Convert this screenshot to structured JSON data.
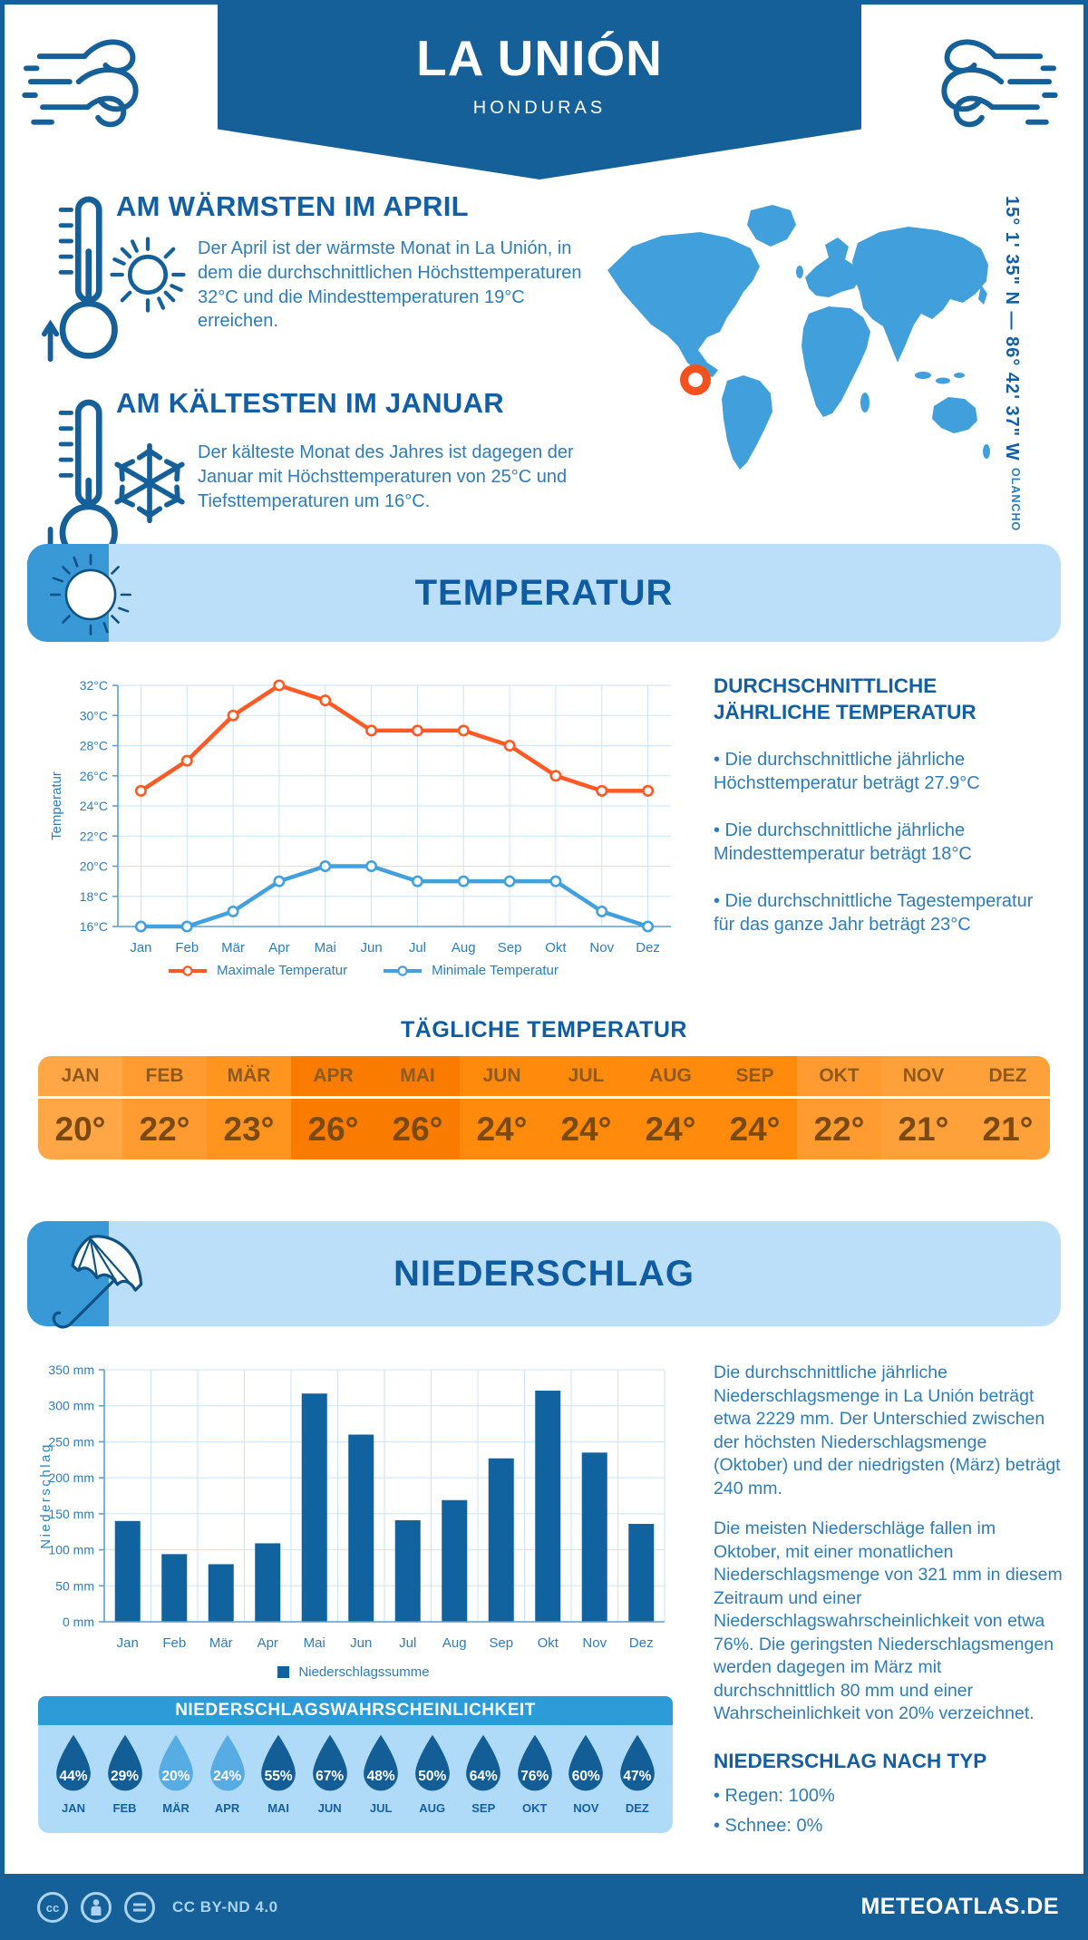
{
  "header": {
    "title": "LA UNIÓN",
    "subtitle": "HONDURAS"
  },
  "warmest": {
    "title": "AM WÄRMSTEN IM APRIL",
    "text": "Der April ist der wärmste Monat in La Unión, in dem die durchschnittlichen Höchsttemperaturen 32°C und die Mindesttemperaturen 19°C erreichen."
  },
  "coldest": {
    "title": "AM KÄLTESTEN IM JANUAR",
    "text": "Der kälteste Monat des Jahres ist dagegen der Januar mit Höchsttemperaturen von 25°C und Tiefsttemperaturen um 16°C."
  },
  "map": {
    "coordinates": "15° 1' 35\" N — 86° 42' 37\" W",
    "region": "OLANCHO"
  },
  "temperature_section": {
    "title": "TEMPERATUR"
  },
  "precipitation_section": {
    "title": "NIEDERSCHLAG"
  },
  "annual": {
    "heading": "DURCHSCHNITTLICHE JÄHRLICHE TEMPERATUR",
    "bullets": [
      "• Die durchschnittliche jährliche Höchsttemperatur beträgt 27.9°C",
      "• Die durchschnittliche jährliche Mindesttemperatur beträgt 18°C",
      "• Die durchschnittliche Tagestemperatur für das ganze Jahr beträgt 23°C"
    ]
  },
  "daily": {
    "heading": "TÄGLICHE TEMPERATUR",
    "columns": [
      {
        "month": "JAN",
        "value": "20°",
        "color": "#FFA647"
      },
      {
        "month": "FEB",
        "value": "22°",
        "color": "#FF9B31"
      },
      {
        "month": "MÄR",
        "value": "23°",
        "color": "#FF941F"
      },
      {
        "month": "APR",
        "value": "26°",
        "color": "#F97C00"
      },
      {
        "month": "MAI",
        "value": "26°",
        "color": "#F97C00"
      },
      {
        "month": "JUN",
        "value": "24°",
        "color": "#FF8A0C"
      },
      {
        "month": "JUL",
        "value": "24°",
        "color": "#FF8A0C"
      },
      {
        "month": "AUG",
        "value": "24°",
        "color": "#FF8A0C"
      },
      {
        "month": "SEP",
        "value": "24°",
        "color": "#FF8A0C"
      },
      {
        "month": "OKT",
        "value": "22°",
        "color": "#FF9B31"
      },
      {
        "month": "NOV",
        "value": "21°",
        "color": "#FFA13B"
      },
      {
        "month": "DEZ",
        "value": "21°",
        "color": "#FFA13B"
      }
    ]
  },
  "precip_text": {
    "para1": "Die durchschnittliche jährliche Niederschlagsmenge in La Unión beträgt etwa 2229 mm. Der Unterschied zwischen der höchsten Niederschlagsmenge (Oktober) und der niedrigsten (März) beträgt 240 mm.",
    "para2": "Die meisten Niederschläge fallen im Oktober, mit einer monatlichen Niederschlagsmenge von 321 mm in diesem Zeitraum und einer Niederschlagswahrscheinlichkeit von etwa 76%. Die geringsten Niederschlagsmengen werden dagegen im März mit durchschnittlich 80 mm und einer Wahrscheinlichkeit von 20% verzeichnet.",
    "type_heading": "NIEDERSCHLAG NACH TYP",
    "types": [
      "• Regen: 100%",
      "• Schnee: 0%"
    ]
  },
  "probability": {
    "heading": "NIEDERSCHLAGSWAHRSCHEINLICHKEIT",
    "items": [
      {
        "month": "JAN",
        "value": "44%",
        "light": false
      },
      {
        "month": "FEB",
        "value": "29%",
        "light": false
      },
      {
        "month": "MÄR",
        "value": "20%",
        "light": true
      },
      {
        "month": "APR",
        "value": "24%",
        "light": true
      },
      {
        "month": "MAI",
        "value": "55%",
        "light": false
      },
      {
        "month": "JUN",
        "value": "67%",
        "light": false
      },
      {
        "month": "JUL",
        "value": "48%",
        "light": false
      },
      {
        "month": "AUG",
        "value": "50%",
        "light": false
      },
      {
        "month": "SEP",
        "value": "64%",
        "light": false
      },
      {
        "month": "OKT",
        "value": "76%",
        "light": false
      },
      {
        "month": "NOV",
        "value": "60%",
        "light": false
      },
      {
        "month": "DEZ",
        "value": "47%",
        "light": false
      }
    ]
  },
  "footer": {
    "license": "CC BY-ND 4.0",
    "site": "METEOATLAS.DE"
  },
  "colors": {
    "dark_blue": "#16609A",
    "heading_blue": "#135FA5",
    "body_blue": "#2E7CB8",
    "banner_bg": "#BCDFF9",
    "medium_blue": "#3899D6",
    "map_blue": "#41A0DC",
    "marker_orange": "#F4511E",
    "prob_header": "#2E9BD9",
    "prob_panel": "#B0DBF8",
    "drop_dark": "#145E97",
    "drop_light": "#57ACE4",
    "footer_text": "#A9D3EF",
    "grid": "#CBE3F4",
    "axis": "#5E9FCC"
  },
  "chart_data": [
    {
      "type": "line",
      "x": [
        "Jan",
        "Feb",
        "Mär",
        "Apr",
        "Mai",
        "Jun",
        "Jul",
        "Aug",
        "Sep",
        "Okt",
        "Nov",
        "Dez"
      ],
      "ylabel": "Temperatur",
      "ylim": [
        16,
        32
      ],
      "ytick_step": 2,
      "ytick_suffix": "°C",
      "grid": true,
      "legend_position": "bottom",
      "series": [
        {
          "name": "Maximale Temperatur",
          "color": "#FF5A26",
          "values": [
            25,
            27,
            30,
            32,
            31,
            29,
            29,
            29,
            28,
            26,
            25,
            25
          ]
        },
        {
          "name": "Minimale Temperatur",
          "color": "#42A0DE",
          "values": [
            16,
            16,
            17,
            19,
            20,
            20,
            19,
            19,
            19,
            19,
            17,
            16
          ]
        }
      ]
    },
    {
      "type": "bar",
      "x": [
        "Jan",
        "Feb",
        "Mär",
        "Apr",
        "Mai",
        "Jun",
        "Jul",
        "Aug",
        "Sep",
        "Okt",
        "Nov",
        "Dez"
      ],
      "ylabel": "Niederschlag",
      "ylim": [
        0,
        350
      ],
      "ytick_step": 50,
      "ytick_suffix": " mm",
      "grid": true,
      "legend_position": "bottom",
      "bar_color": "#10639E",
      "legend": [
        "Niederschlagssumme"
      ],
      "values": [
        140,
        94,
        80,
        109,
        317,
        260,
        141,
        169,
        227,
        321,
        235,
        136
      ]
    }
  ]
}
